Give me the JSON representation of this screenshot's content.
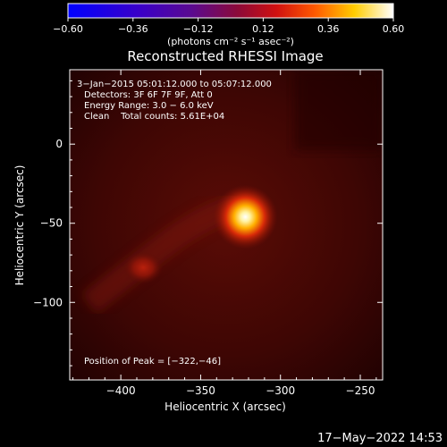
{
  "chart_data": {
    "type": "heatmap",
    "title": "Reconstructed RHESSI Image",
    "xlabel": "Heliocentric X (arcsec)",
    "ylabel": "Heliocentric Y (arcsec)",
    "xlim": [
      -432,
      -236
    ],
    "ylim": [
      -149,
      47
    ],
    "x_ticks": [
      -400,
      -350,
      -300,
      -250
    ],
    "y_ticks": [
      0,
      -50,
      -100
    ],
    "x_tick_labels": [
      "−400",
      "−350",
      "−300",
      "−250"
    ],
    "y_tick_labels": [
      "0",
      "−50",
      "−100"
    ],
    "annotation_lines": [
      " 3−Jan−2015 05:01:12.000 to 05:07:12.000",
      "Detectors: 3F 6F 7F 9F, Att 0",
      "Energy Range: 3.0 − 6.0 keV",
      "Clean    Total counts: 5.61E+04"
    ],
    "peak_label": "Position of Peak = [−322,−46]",
    "peak": [
      -322,
      -46
    ],
    "secondary_source": [
      -386,
      -78
    ],
    "colorbar": {
      "range": [
        -0.6,
        0.6
      ],
      "tick_labels": [
        "−0.60",
        "−0.36",
        "−0.12",
        "0.12",
        "0.36",
        "0.60"
      ],
      "units_label": "(photons cm⁻² s⁻¹ asec⁻²)",
      "colormap": "blue-purple-red-yellow-white"
    },
    "grid": false
  },
  "footer_date": "17−May−2022 14:53"
}
